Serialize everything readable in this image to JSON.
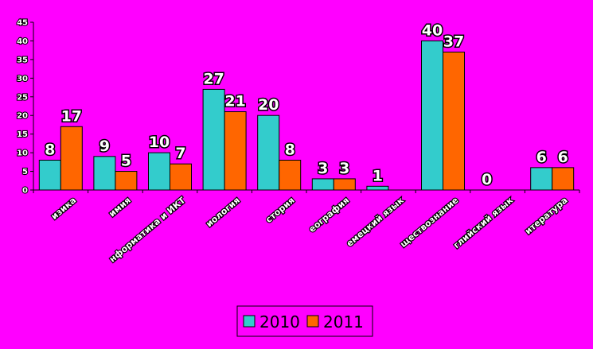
{
  "chart_data": {
    "type": "bar",
    "title": "",
    "xlabel": "",
    "ylabel": "",
    "ylim": [
      0,
      45
    ],
    "yticks": [
      0,
      5,
      10,
      15,
      20,
      25,
      30,
      35,
      40,
      45
    ],
    "grid": false,
    "legend_position": "bottom",
    "categories": [
      "изика",
      "имия",
      "нформатика и ИКТ",
      "иология",
      "стория",
      "еография",
      "емецкий язык",
      "ществознание",
      "глийский язык",
      "итература"
    ],
    "series": [
      {
        "name": "2010",
        "color": "#33cccc",
        "values": [
          8,
          9,
          10,
          27,
          20,
          3,
          1,
          40,
          null,
          6
        ],
        "labels": [
          "8",
          "9",
          "10",
          "27",
          "20",
          "3",
          "1",
          "40",
          "0",
          "6"
        ]
      },
      {
        "name": "2011",
        "color": "#ff6600",
        "values": [
          17,
          5,
          7,
          21,
          8,
          3,
          null,
          37,
          null,
          6
        ],
        "labels": [
          "17",
          "5",
          "7",
          "21",
          "8",
          "3",
          "",
          "37",
          "",
          "6"
        ]
      }
    ]
  }
}
